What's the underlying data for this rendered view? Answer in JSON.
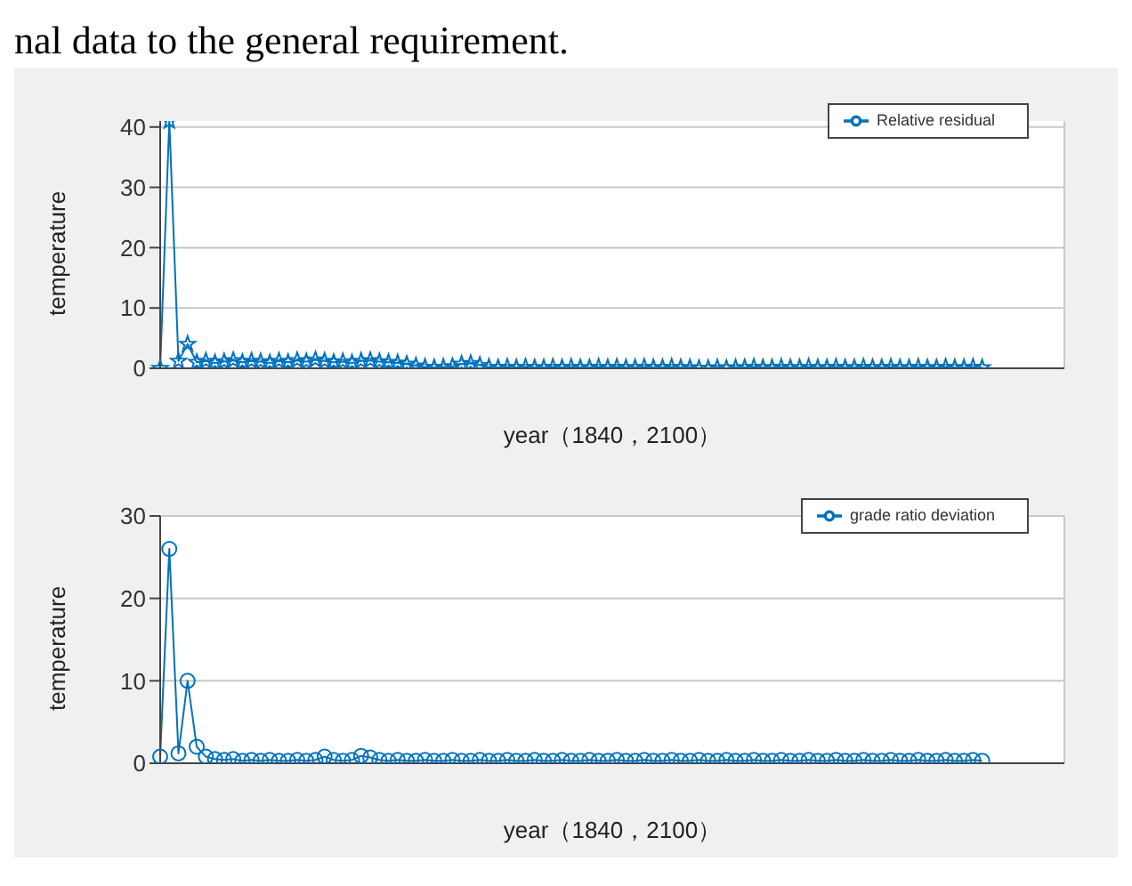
{
  "chart_data": [
    {
      "type": "line",
      "annotations": [
        "nal data to the general requirement."
      ],
      "ylabel": "temperature",
      "xlabel": "year（1840，2100）",
      "categories": [
        null,
        null,
        null,
        null,
        null,
        null,
        null,
        null,
        null,
        null,
        null,
        null,
        null,
        null,
        null,
        null,
        null,
        null,
        null,
        null,
        null,
        null,
        null,
        null,
        null,
        null,
        null,
        null,
        null,
        null,
        null,
        null,
        null,
        null,
        null,
        null,
        null,
        null,
        null,
        null,
        null,
        null,
        null,
        null,
        null,
        null,
        null,
        null,
        null,
        null,
        null,
        null,
        null,
        null,
        null,
        null,
        null,
        null,
        null,
        null,
        null,
        null,
        null,
        null,
        null,
        null,
        null,
        null,
        null,
        null,
        null,
        null,
        null,
        null,
        null,
        null,
        null,
        null,
        null,
        null,
        null,
        null,
        null,
        null,
        null,
        null,
        null,
        null,
        null,
        null,
        null,
        null,
        null,
        null,
        null,
        null,
        null,
        null,
        null,
        null
      ],
      "series": [
        {
          "name": "Relative residual",
          "color": "#0072bd",
          "values": [
            0,
            41,
            1.2,
            4,
            1.0,
            1.2,
            0.9,
            1.1,
            1.3,
            1.0,
            1.2,
            1.1,
            0.9,
            1.2,
            1.0,
            1.3,
            1.1,
            1.4,
            1.2,
            1.0,
            1.1,
            0.9,
            1.2,
            1.3,
            1.1,
            1.0,
            0.9,
            0.7,
            0.4,
            0.2,
            0.1,
            0.2,
            0.3,
            0.7,
            0.8,
            0.5,
            0.2,
            0.1,
            0.2,
            0.1,
            0.2,
            0.1,
            0.1,
            0.2,
            0.1,
            0.2,
            0.1,
            0.1,
            0.2,
            0.1,
            0.2,
            0.1,
            0.1,
            0.2,
            0.1,
            0.1,
            0.2,
            0.1,
            0.1,
            0,
            0,
            0.1,
            0,
            0.1,
            0.1,
            0.2,
            0.1,
            0.1,
            0.2,
            0.1,
            0.1,
            0.2,
            0.1,
            0.1,
            0.2,
            0.1,
            0.1,
            0.2,
            0.1,
            0.1,
            0.2,
            0.1,
            0.1,
            0.2,
            0.1,
            0.1,
            0.2,
            0.1,
            0.1,
            0.2,
            0.1,
            null,
            null,
            null,
            null,
            null,
            null,
            null,
            null,
            null
          ]
        }
      ],
      "ylim": [
        0,
        41
      ],
      "yticks": [
        0,
        10,
        20,
        30,
        40
      ],
      "grid": true,
      "legend": "top right",
      "marker": "star",
      "tick_labels": "y"
    },
    {
      "type": "line",
      "ylabel": "temperature",
      "xlabel": "year（1840，2100）",
      "categories": [
        null,
        null,
        null,
        null,
        null,
        null,
        null,
        null,
        null,
        null,
        null,
        null,
        null,
        null,
        null,
        null,
        null,
        null,
        null,
        null,
        null,
        null,
        null,
        null,
        null,
        null,
        null,
        null,
        null,
        null,
        null,
        null,
        null,
        null,
        null,
        null,
        null,
        null,
        null,
        null,
        null,
        null,
        null,
        null,
        null,
        null,
        null,
        null,
        null,
        null,
        null,
        null,
        null,
        null,
        null,
        null,
        null,
        null,
        null,
        null,
        null,
        null,
        null,
        null,
        null,
        null,
        null,
        null,
        null,
        null,
        null,
        null,
        null,
        null,
        null,
        null,
        null,
        null,
        null,
        null,
        null,
        null,
        null,
        null,
        null,
        null,
        null,
        null,
        null,
        null,
        null,
        null,
        null,
        null,
        null,
        null,
        null,
        null,
        null,
        null
      ],
      "series": [
        {
          "name": "grade ratio deviation",
          "color": "#0072bd",
          "values": [
            0.8,
            26,
            1.2,
            10,
            2,
            0.8,
            0.5,
            0.4,
            0.5,
            0.3,
            0.4,
            0.3,
            0.4,
            0.3,
            0.3,
            0.4,
            0.3,
            0.4,
            0.8,
            0.4,
            0.3,
            0.4,
            0.9,
            0.7,
            0.4,
            0.3,
            0.4,
            0.3,
            0.3,
            0.4,
            0.3,
            0.3,
            0.4,
            0.3,
            0.3,
            0.4,
            0.3,
            0.3,
            0.4,
            0.3,
            0.3,
            0.4,
            0.3,
            0.3,
            0.4,
            0.3,
            0.3,
            0.4,
            0.3,
            0.3,
            0.4,
            0.3,
            0.3,
            0.4,
            0.3,
            0.3,
            0.4,
            0.3,
            0.3,
            0.4,
            0.3,
            0.3,
            0.4,
            0.3,
            0.3,
            0.4,
            0.3,
            0.3,
            0.4,
            0.3,
            0.3,
            0.4,
            0.3,
            0.3,
            0.4,
            0.3,
            0.3,
            0.4,
            0.3,
            0.3,
            0.4,
            0.3,
            0.3,
            0.4,
            0.3,
            0.3,
            0.4,
            0.3,
            0.3,
            0.4,
            0.3,
            null,
            null,
            null,
            null,
            null,
            null,
            null,
            null,
            null
          ]
        }
      ],
      "ylim": [
        0,
        30
      ],
      "yticks": [
        0,
        10,
        20,
        30
      ],
      "grid": true,
      "legend": "top right",
      "marker": "circle",
      "tick_labels": "y"
    }
  ]
}
